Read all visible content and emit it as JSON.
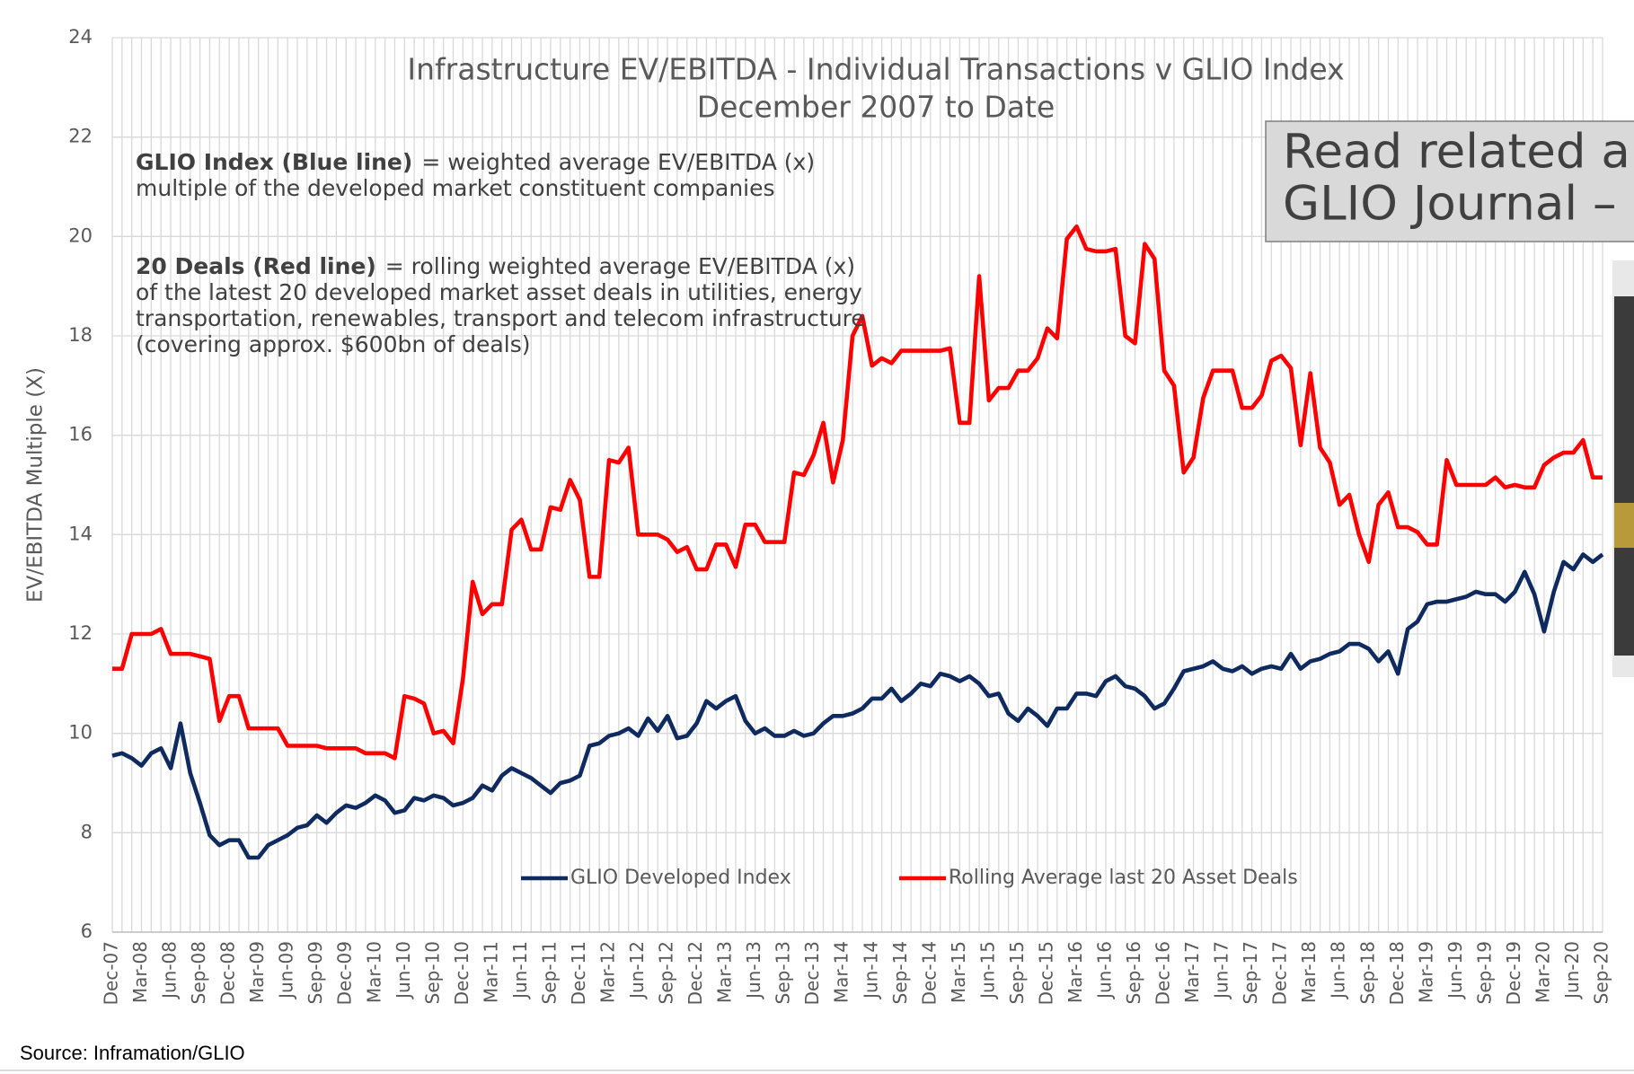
{
  "chart_data": {
    "type": "line",
    "title": [
      "Infrastructure EV/EBITDA - Individual Transactions v GLIO Index",
      "December 2007 to Date"
    ],
    "annotations": [
      {
        "bold": "GLIO Index (Blue line)",
        "text": [
          "= weighted average EV/EBITDA (x)",
          "multiple of the developed market constituent companies"
        ]
      },
      {
        "bold": "20 Deals (Red line)",
        "text": [
          "= rolling weighted average EV/EBITDA (x)",
          "of the latest 20 developed market asset deals in utilities, energy",
          "transportation, renewables, transport and telecom infrastructure",
          "(covering approx. $600bn of deals)"
        ]
      }
    ],
    "y_label": "EV/EBITDA Multiple (X)",
    "ylim": [
      6,
      24
    ],
    "yticks": [
      6,
      8,
      10,
      12,
      14,
      16,
      18,
      20,
      22,
      24
    ],
    "grid": true,
    "legend": "lower center",
    "categories": [
      "Dec-07",
      null,
      null,
      "Mar-08",
      null,
      null,
      "Jun-08",
      null,
      null,
      "Sep-08",
      null,
      null,
      "Dec-08",
      null,
      null,
      "Mar-09",
      null,
      null,
      "Jun-09",
      null,
      null,
      "Sep-09",
      null,
      null,
      "Dec-09",
      null,
      null,
      "Mar-10",
      null,
      null,
      "Jun-10",
      null,
      null,
      "Sep-10",
      null,
      null,
      "Dec-10",
      null,
      null,
      "Mar-11",
      null,
      null,
      "Jun-11",
      null,
      null,
      "Sep-11",
      null,
      null,
      "Dec-11",
      null,
      null,
      "Mar-12",
      null,
      null,
      "Jun-12",
      null,
      null,
      "Sep-12",
      null,
      null,
      "Dec-12",
      null,
      null,
      "Mar-13",
      null,
      null,
      "Jun-13",
      null,
      null,
      "Sep-13",
      null,
      null,
      "Dec-13",
      null,
      null,
      "Mar-14",
      null,
      null,
      "Jun-14",
      null,
      null,
      "Sep-14",
      null,
      null,
      "Dec-14",
      null,
      null,
      "Mar-15",
      null,
      null,
      "Jun-15",
      null,
      null,
      "Sep-15",
      null,
      null,
      "Dec-15",
      null,
      null,
      "Mar-16",
      null,
      null,
      "Jun-16",
      null,
      null,
      "Sep-16",
      null,
      null,
      "Dec-16",
      null,
      null,
      "Mar-17",
      null,
      null,
      "Jun-17",
      null,
      null,
      "Sep-17",
      null,
      null,
      "Dec-17",
      null,
      null,
      "Mar-18",
      null,
      null,
      "Jun-18",
      null,
      null,
      "Sep-18",
      null,
      null,
      "Dec-18",
      null,
      null,
      "Mar-19",
      null,
      null,
      "Jun-19",
      null,
      null,
      "Sep-19",
      null,
      null,
      "Dec-19",
      null,
      null,
      "Mar-20",
      null,
      null,
      "Jun-20",
      null,
      null,
      "Sep-20"
    ],
    "series": [
      {
        "name": "GLIO Developed Index",
        "color": "#0e2a5e",
        "values": [
          9.55,
          9.6,
          9.5,
          9.35,
          9.6,
          9.7,
          9.3,
          10.2,
          9.2,
          8.6,
          7.95,
          7.75,
          7.85,
          7.85,
          7.5,
          7.5,
          7.75,
          7.85,
          7.95,
          8.1,
          8.15,
          8.35,
          8.2,
          8.4,
          8.55,
          8.5,
          8.6,
          8.75,
          8.65,
          8.4,
          8.45,
          8.7,
          8.65,
          8.75,
          8.7,
          8.55,
          8.6,
          8.7,
          8.95,
          8.85,
          9.15,
          9.3,
          9.2,
          9.1,
          8.95,
          8.8,
          9.0,
          9.05,
          9.15,
          9.75,
          9.8,
          9.95,
          10.0,
          10.1,
          9.95,
          10.3,
          10.05,
          10.35,
          9.9,
          9.95,
          10.2,
          10.65,
          10.5,
          10.65,
          10.75,
          10.25,
          10.0,
          10.1,
          9.95,
          9.95,
          10.05,
          9.95,
          10.0,
          10.2,
          10.35,
          10.35,
          10.4,
          10.5,
          10.7,
          10.7,
          10.9,
          10.65,
          10.8,
          11.0,
          10.95,
          11.2,
          11.15,
          11.05,
          11.15,
          11.0,
          10.75,
          10.8,
          10.4,
          10.25,
          10.5,
          10.35,
          10.15,
          10.5,
          10.5,
          10.8,
          10.8,
          10.75,
          11.05,
          11.15,
          10.95,
          10.9,
          10.75,
          10.5,
          10.6,
          10.9,
          11.25,
          11.3,
          11.35,
          11.45,
          11.3,
          11.25,
          11.35,
          11.2,
          11.3,
          11.35,
          11.3,
          11.6,
          11.3,
          11.45,
          11.5,
          11.6,
          11.65,
          11.8,
          11.8,
          11.7,
          11.45,
          11.65,
          11.2,
          12.1,
          12.25,
          12.6,
          12.65,
          12.65,
          12.7,
          12.75,
          12.85,
          12.8,
          12.8,
          12.65,
          12.85,
          13.25,
          12.8,
          12.05,
          12.85,
          13.45,
          13.3,
          13.6,
          13.45,
          13.6
        ]
      },
      {
        "name": "Rolling Average last 20 Asset Deals",
        "color": "#ff0000",
        "values": [
          11.3,
          11.3,
          12.0,
          12.0,
          12.0,
          12.1,
          11.6,
          11.6,
          11.6,
          11.55,
          11.5,
          10.25,
          10.75,
          10.75,
          10.1,
          10.1,
          10.1,
          10.1,
          9.75,
          9.75,
          9.75,
          9.75,
          9.7,
          9.7,
          9.7,
          9.7,
          9.6,
          9.6,
          9.6,
          9.5,
          10.75,
          10.7,
          10.6,
          10.0,
          10.05,
          9.8,
          11.1,
          13.05,
          12.4,
          12.6,
          12.6,
          14.1,
          14.3,
          13.7,
          13.7,
          14.55,
          14.5,
          15.1,
          14.7,
          13.15,
          13.15,
          15.5,
          15.45,
          15.75,
          14.0,
          14.0,
          14.0,
          13.9,
          13.65,
          13.75,
          13.3,
          13.3,
          13.8,
          13.8,
          13.35,
          14.2,
          14.2,
          13.85,
          13.85,
          13.85,
          15.25,
          15.2,
          15.6,
          16.25,
          15.05,
          15.9,
          18.0,
          18.4,
          17.4,
          17.55,
          17.45,
          17.7,
          17.7,
          17.7,
          17.7,
          17.7,
          17.75,
          16.25,
          16.25,
          19.2,
          16.7,
          16.95,
          16.95,
          17.3,
          17.3,
          17.55,
          18.15,
          17.95,
          19.95,
          20.2,
          19.75,
          19.7,
          19.7,
          19.75,
          18.0,
          17.85,
          19.85,
          19.55,
          17.3,
          17.0,
          15.25,
          15.55,
          16.75,
          17.3,
          17.3,
          17.3,
          16.55,
          16.55,
          16.8,
          17.5,
          17.6,
          17.35,
          15.8,
          17.25,
          15.75,
          15.45,
          14.6,
          14.8,
          14.0,
          13.45,
          14.6,
          14.85,
          14.15,
          14.15,
          14.05,
          13.8,
          13.8,
          15.5,
          15.0,
          15.0,
          15.0,
          15.0,
          15.15,
          14.95,
          15.0,
          14.95,
          14.95,
          15.4,
          15.55,
          15.65,
          15.65,
          15.9,
          15.15,
          15.15
        ]
      }
    ]
  },
  "overlay": {
    "lines": [
      "Read related a",
      "GLIO Journal –"
    ]
  },
  "source": "Source: Inframation/GLIO"
}
